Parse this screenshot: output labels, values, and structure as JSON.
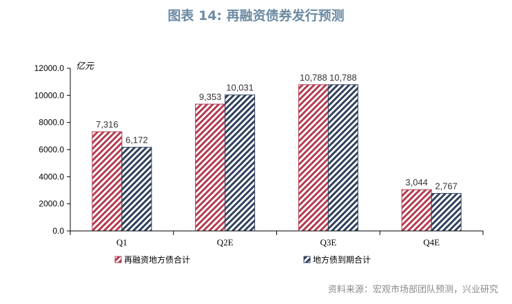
{
  "header": {
    "title": "图表 14: 再融资债券发行预测"
  },
  "footer": {
    "source": "资料来源：宏观市场部团队预测，兴业研究"
  },
  "chart_data": {
    "type": "bar",
    "unit_label": "亿元",
    "categories": [
      "Q1",
      "Q2E",
      "Q3E",
      "Q4E"
    ],
    "series": [
      {
        "name": "再融资地方债合计",
        "values": [
          7316,
          9353,
          10788,
          3044
        ],
        "labels": [
          "7,316",
          "9,353",
          "10,788",
          "3,044"
        ],
        "color": "#b33a4e"
      },
      {
        "name": "地方债到期合计",
        "values": [
          6172,
          10031,
          10788,
          2767
        ],
        "labels": [
          "6,172",
          "10,031",
          "10,788",
          "2,767"
        ],
        "color": "#2e3f5c"
      }
    ],
    "ylim": [
      0,
      12000
    ],
    "yticks": [
      0,
      2000,
      4000,
      6000,
      8000,
      10000,
      12000
    ],
    "ytick_labels": [
      "0.0",
      "2000.0",
      "4000.0",
      "6000.0",
      "8000.0",
      "10000.0",
      "12000.0"
    ],
    "legend_position": "bottom",
    "grid": false
  }
}
